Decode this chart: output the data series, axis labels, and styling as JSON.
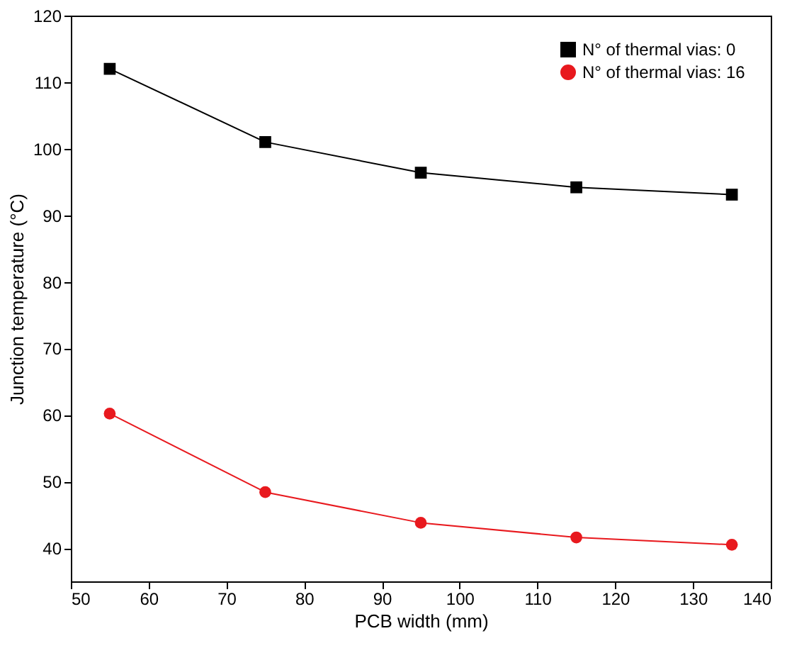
{
  "chart_data": {
    "type": "line",
    "xlabel": "PCB width (mm)",
    "ylabel": "Junction temperature (°C)",
    "x": [
      55,
      75,
      95,
      115,
      135
    ],
    "series": [
      {
        "name": "N° of thermal vias: 0",
        "color": "#000000",
        "marker": "square",
        "values": [
          112,
          101,
          96.4,
          94.2,
          93.1
        ]
      },
      {
        "name": "N° of thermal vias: 16",
        "color": "#e8191e",
        "marker": "circle",
        "values": [
          60.2,
          48.4,
          43.8,
          41.6,
          40.5
        ]
      }
    ],
    "xlim": [
      50,
      140
    ],
    "xticks": [
      50,
      60,
      70,
      80,
      90,
      100,
      110,
      120,
      130,
      140
    ],
    "ylim": [
      35,
      120
    ],
    "yticks": [
      40,
      50,
      60,
      70,
      80,
      90,
      100,
      110,
      120
    ],
    "grid": false,
    "legend": "top right",
    "line_style": "solid"
  }
}
